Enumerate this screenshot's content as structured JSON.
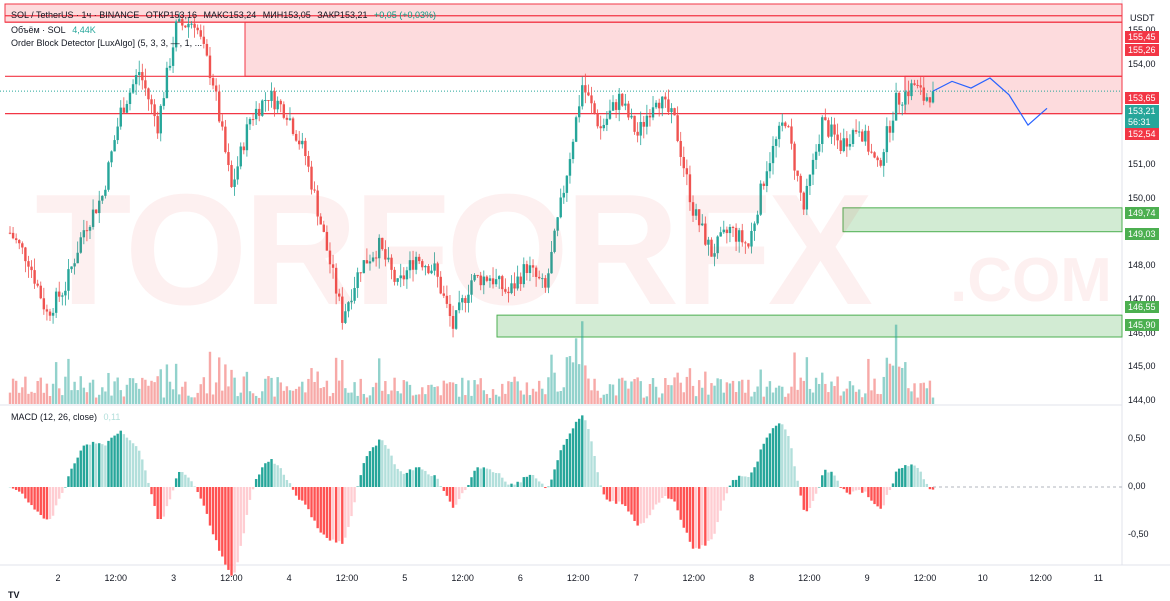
{
  "header": {
    "symbol_line": "SOL / TetherUS · 1ч · BINANCE",
    "open_label": "ОТКР153,16",
    "high_label": "МАКС153,24",
    "low_label": "МИН153,05",
    "close_label": "ЗАКР153,21",
    "change_label": "+0,05 (+0,03%)",
    "volume_label": "Объём · SOL",
    "volume_value": "4,44K",
    "indicator_label": "Order Block Detector [LuxAlgo] (5, 3, 3, —, 1, ...",
    "macd_label": "MACD (12, 26, close)",
    "macd_value": "0,11"
  },
  "currency": "USDT",
  "watermark": {
    "main": "TORFORFX",
    "suffix": ".COM"
  },
  "price_tags": {
    "t15545": "155,45",
    "t15526": "155,26",
    "t15365": "153,65",
    "t15321": "153,21",
    "t5631": "56:31",
    "t15254": "152,54",
    "t14974": "149,74",
    "t14903": "149,03",
    "t14655": "146,55",
    "t14590": "145,90"
  },
  "price_axis": [
    "155,00",
    "154,00",
    "153,00",
    "152,00",
    "151,00",
    "150,00",
    "149,00",
    "148,00",
    "147,00",
    "146,00",
    "145,00",
    "144,00"
  ],
  "macd_axis": [
    "0,50",
    "0,00",
    "-0,50"
  ],
  "time_axis": [
    "2",
    "12:00",
    "3",
    "12:00",
    "4",
    "12:00",
    "5",
    "12:00",
    "6",
    "12:00",
    "7",
    "12:00",
    "8",
    "12:00",
    "9",
    "12:00",
    "10",
    "12:00",
    "11"
  ],
  "colors": {
    "up": "#26a69a",
    "down": "#ef5350",
    "bear_zone": "#f23645",
    "bull_zone": "#4caf50",
    "projection": "#2962ff"
  },
  "chart_data": {
    "type": "candlestick",
    "symbol": "SOL/USDT",
    "interval": "1h",
    "last_close": 153.21,
    "y_range": [
      143.7,
      155.8
    ],
    "close_path": [
      [
        0,
        149.0
      ],
      [
        6,
        148.2
      ],
      [
        12,
        146.6
      ],
      [
        18,
        147.4
      ],
      [
        24,
        149.1
      ],
      [
        30,
        150.1
      ],
      [
        36,
        152.6
      ],
      [
        42,
        153.8
      ],
      [
        48,
        152.2
      ],
      [
        54,
        155.1
      ],
      [
        60,
        155.3
      ],
      [
        66,
        153.5
      ],
      [
        72,
        150.3
      ],
      [
        78,
        152.4
      ],
      [
        84,
        153.1
      ],
      [
        90,
        152.6
      ],
      [
        96,
        151.3
      ],
      [
        102,
        148.9
      ],
      [
        108,
        146.5
      ],
      [
        114,
        148.0
      ],
      [
        120,
        148.6
      ],
      [
        126,
        147.4
      ],
      [
        132,
        148.3
      ],
      [
        138,
        147.9
      ],
      [
        144,
        146.2
      ],
      [
        150,
        147.6
      ],
      [
        156,
        147.7
      ],
      [
        162,
        147.2
      ],
      [
        168,
        148.0
      ],
      [
        174,
        147.3
      ],
      [
        180,
        150.3
      ],
      [
        186,
        153.4
      ],
      [
        192,
        152.1
      ],
      [
        198,
        153.0
      ],
      [
        204,
        151.9
      ],
      [
        210,
        153.1
      ],
      [
        216,
        152.3
      ],
      [
        222,
        149.7
      ],
      [
        228,
        148.4
      ],
      [
        234,
        149.1
      ],
      [
        240,
        148.6
      ],
      [
        246,
        151.0
      ],
      [
        252,
        152.4
      ],
      [
        258,
        149.7
      ],
      [
        264,
        152.3
      ],
      [
        270,
        151.6
      ],
      [
        276,
        152.2
      ],
      [
        282,
        150.9
      ],
      [
        288,
        152.9
      ],
      [
        294,
        153.4
      ],
      [
        297,
        153.0
      ],
      [
        300,
        153.21
      ]
    ],
    "projection": [
      153.21,
      153.5,
      153.3,
      153.6,
      153.1,
      152.2,
      152.7
    ]
  }
}
